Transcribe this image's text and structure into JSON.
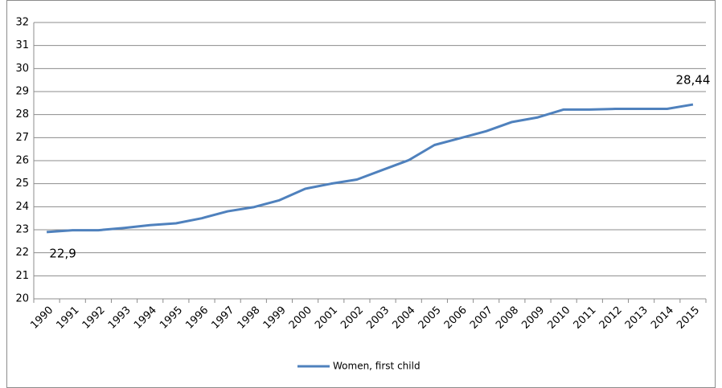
{
  "chart_data": {
    "type": "line",
    "categories": [
      "1990",
      "1991",
      "1992",
      "1993",
      "1994",
      "1995",
      "1996",
      "1997",
      "1998",
      "1999",
      "2000",
      "2001",
      "2002",
      "2003",
      "2004",
      "2005",
      "2006",
      "2007",
      "2008",
      "2009",
      "2010",
      "2011",
      "2012",
      "2013",
      "2014",
      "2015"
    ],
    "series": [
      {
        "name": "Women, first child",
        "color": "#4f81bd",
        "values": [
          22.9,
          22.98,
          22.98,
          23.08,
          23.2,
          23.28,
          23.5,
          23.8,
          23.98,
          24.28,
          24.78,
          25.0,
          25.18,
          25.6,
          26.02,
          26.68,
          26.98,
          27.28,
          27.68,
          27.88,
          28.22,
          28.22,
          28.25,
          28.25,
          28.25,
          28.44
        ],
        "value_labels": [
          "22,9",
          null,
          null,
          null,
          null,
          null,
          null,
          null,
          null,
          null,
          null,
          null,
          null,
          null,
          null,
          null,
          null,
          null,
          null,
          null,
          null,
          null,
          null,
          null,
          null,
          "28,44"
        ]
      }
    ],
    "ylim": [
      20,
      32
    ],
    "yticks": [
      20,
      21,
      22,
      23,
      24,
      25,
      26,
      27,
      28,
      29,
      30,
      31,
      32
    ],
    "grid": true,
    "legend": "bottom"
  }
}
